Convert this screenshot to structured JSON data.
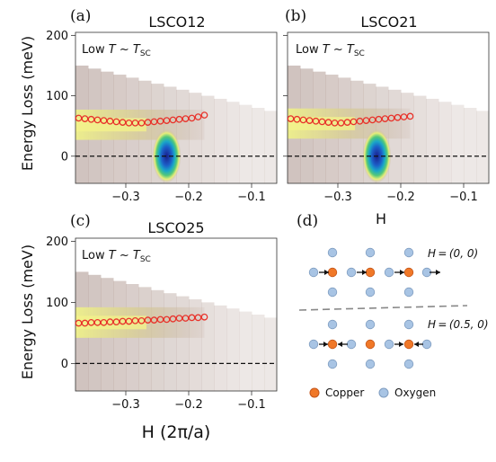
{
  "figure": {
    "panels": [
      {
        "letter": "(a)",
        "title": "LSCO12",
        "note_prefix": "Low ",
        "note_T": "T",
        "note_mid": " ~ ",
        "note_Tsc": "T",
        "note_sub": "SC"
      },
      {
        "letter": "(b)",
        "title": "LSCO21",
        "note_prefix": "Low ",
        "note_T": "T",
        "note_mid": " ~ ",
        "note_Tsc": "T",
        "note_sub": "SC"
      },
      {
        "letter": "(c)",
        "title": "LSCO25",
        "note_prefix": "Low ",
        "note_T": "T",
        "note_mid": " ~ ",
        "note_Tsc": "T",
        "note_sub": "SC"
      }
    ],
    "y_label": "Energy Loss (meV)",
    "x_label_b": "H",
    "x_label_c": "H (2π/a)",
    "y_ticks": [
      "200",
      "100",
      "0"
    ],
    "x_ticks": [
      "−0.3",
      "−0.2",
      "−0.1"
    ],
    "diagram": {
      "letter": "(d)",
      "label_top": "H = (0, 0)",
      "label_bottom": "H = (0.5, 0)",
      "legend_copper": "Copper",
      "legend_oxygen": "Oxygen",
      "copper_color": "#f07828",
      "oxygen_color": "#a8c4e4"
    }
  },
  "chart_data": [
    {
      "type": "heatmap",
      "title": "LSCO12",
      "xlabel": "",
      "ylabel": "Energy Loss (meV)",
      "xlim": [
        -0.38,
        -0.06
      ],
      "ylim": [
        -45,
        205
      ],
      "x_ticks": [
        -0.3,
        -0.2,
        -0.1
      ],
      "y_ticks": [
        0,
        100,
        200
      ],
      "dispersion_points": {
        "x": [
          -0.375,
          -0.365,
          -0.355,
          -0.345,
          -0.335,
          -0.325,
          -0.315,
          -0.305,
          -0.295,
          -0.285,
          -0.275,
          -0.265,
          -0.255,
          -0.245,
          -0.235,
          -0.225,
          -0.215,
          -0.205,
          -0.195,
          -0.185,
          -0.175
        ],
        "y": [
          63,
          62,
          61,
          60,
          59,
          58,
          57,
          56,
          55,
          55,
          55,
          56,
          57,
          58,
          59,
          60,
          61,
          62,
          63,
          65,
          68
        ]
      },
      "elastic_peak": {
        "x": -0.235,
        "y": 0
      },
      "dashed_line_y": 0
    },
    {
      "type": "heatmap",
      "title": "LSCO21",
      "xlabel": "H",
      "ylabel": "",
      "xlim": [
        -0.38,
        -0.06
      ],
      "ylim": [
        -45,
        205
      ],
      "x_ticks": [
        -0.3,
        -0.2,
        -0.1
      ],
      "y_ticks": [
        0,
        100,
        200
      ],
      "dispersion_points": {
        "x": [
          -0.375,
          -0.365,
          -0.355,
          -0.345,
          -0.335,
          -0.325,
          -0.315,
          -0.305,
          -0.295,
          -0.285,
          -0.275,
          -0.265,
          -0.255,
          -0.245,
          -0.235,
          -0.225,
          -0.215,
          -0.205,
          -0.195,
          -0.185
        ],
        "y": [
          62,
          61,
          60,
          59,
          58,
          57,
          56,
          55,
          55,
          56,
          57,
          58,
          59,
          60,
          61,
          62,
          63,
          64,
          65,
          66
        ]
      },
      "elastic_peak": {
        "x": -0.238,
        "y": 0
      },
      "dashed_line_y": 0
    },
    {
      "type": "heatmap",
      "title": "LSCO25",
      "xlabel": "H (2π/a)",
      "ylabel": "Energy Loss (meV)",
      "xlim": [
        -0.38,
        -0.06
      ],
      "ylim": [
        -45,
        205
      ],
      "x_ticks": [
        -0.3,
        -0.2,
        -0.1
      ],
      "y_ticks": [
        0,
        100,
        200
      ],
      "dispersion_points": {
        "x": [
          -0.375,
          -0.365,
          -0.355,
          -0.345,
          -0.335,
          -0.325,
          -0.315,
          -0.305,
          -0.295,
          -0.285,
          -0.275,
          -0.265,
          -0.255,
          -0.245,
          -0.235,
          -0.225,
          -0.215,
          -0.205,
          -0.195,
          -0.185,
          -0.175
        ],
        "y": [
          66,
          66,
          67,
          67,
          67,
          68,
          68,
          69,
          69,
          70,
          70,
          71,
          71,
          72,
          72,
          73,
          74,
          74,
          75,
          75,
          76
        ]
      },
      "elastic_peak": null,
      "dashed_line_y": 0
    }
  ]
}
